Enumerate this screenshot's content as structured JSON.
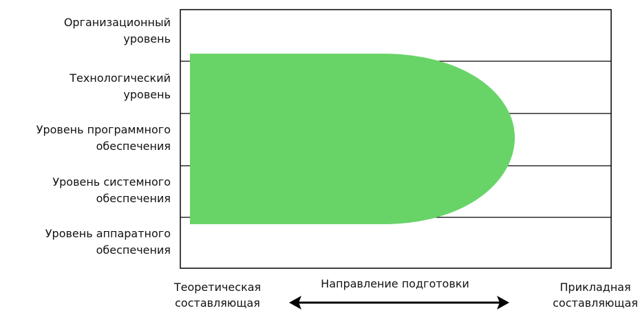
{
  "levels": [
    {
      "label": [
        "Организационный",
        "уровень"
      ]
    },
    {
      "label": [
        "Технологический",
        "уровень"
      ]
    },
    {
      "label": [
        "Уровень программного",
        "обеспечения"
      ]
    },
    {
      "label": [
        "Уровень системного",
        "обеспечения"
      ]
    },
    {
      "label": [
        "Уровень аппаратного",
        "обеспечения"
      ]
    }
  ],
  "axis": {
    "left": [
      "Теоретическая",
      "составляющая"
    ],
    "center": "Направление подготовки",
    "right": [
      "Прикладная",
      "составляющая"
    ]
  }
}
